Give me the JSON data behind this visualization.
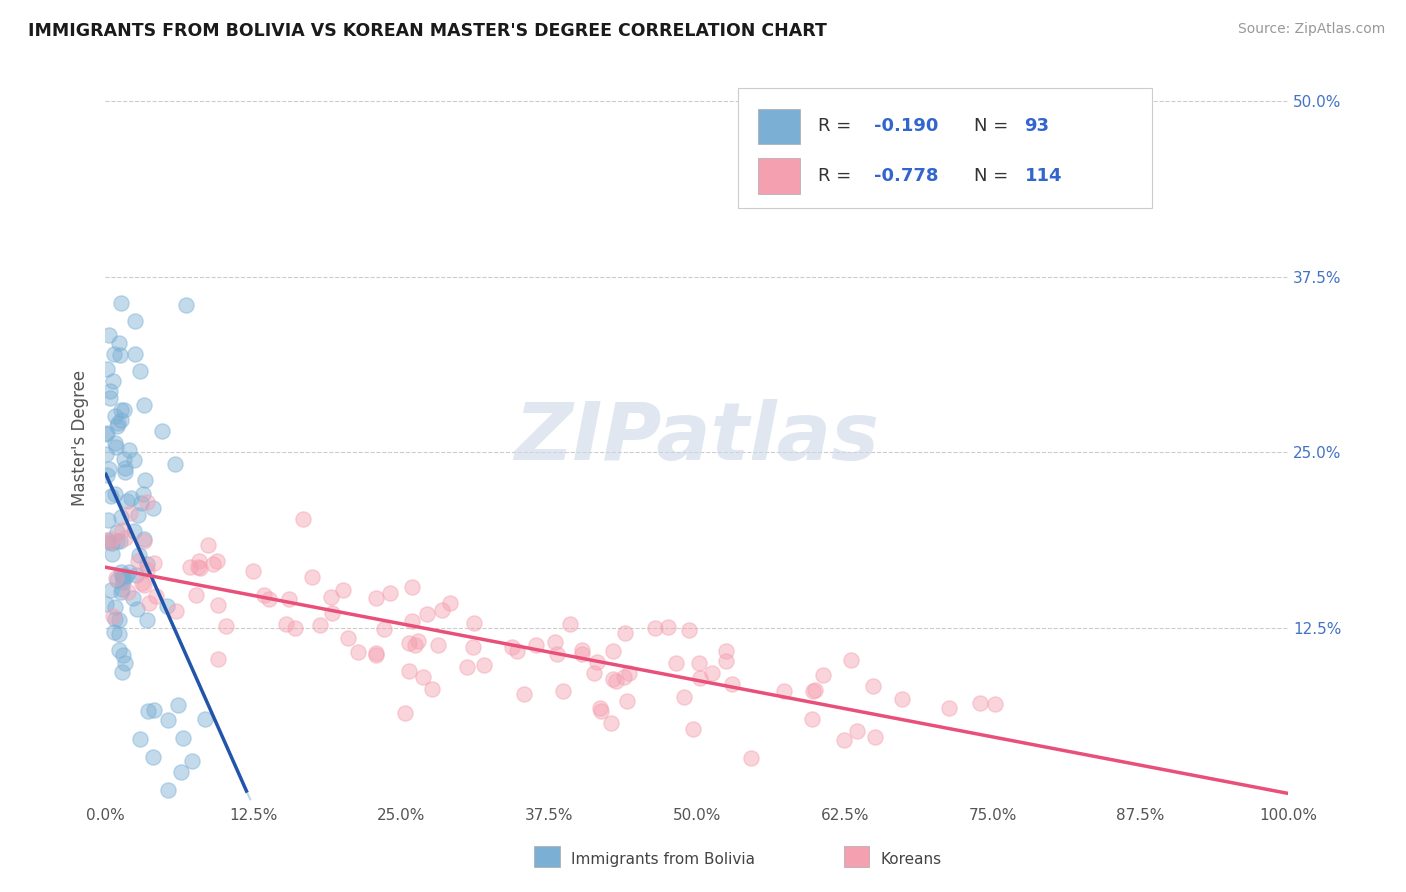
{
  "title": "IMMIGRANTS FROM BOLIVIA VS KOREAN MASTER'S DEGREE CORRELATION CHART",
  "source_text": "Source: ZipAtlas.com",
  "ylabel": "Master's Degree",
  "legend_labels": [
    "Immigrants from Bolivia",
    "Koreans"
  ],
  "r1": -0.19,
  "n1": 93,
  "r2": -0.778,
  "n2": 114,
  "xlim": [
    0.0,
    1.0
  ],
  "ylim": [
    0.0,
    0.52
  ],
  "xtick_labels": [
    "0.0%",
    "12.5%",
    "25.0%",
    "37.5%",
    "50.0%",
    "62.5%",
    "75.0%",
    "87.5%",
    "100.0%"
  ],
  "xtick_vals": [
    0.0,
    0.125,
    0.25,
    0.375,
    0.5,
    0.625,
    0.75,
    0.875,
    1.0
  ],
  "ytick_vals": [
    0.125,
    0.25,
    0.375,
    0.5
  ],
  "right_ytick_labels": [
    "12.5%",
    "25.0%",
    "37.5%",
    "50.0%"
  ],
  "right_ytick_vals": [
    0.125,
    0.25,
    0.375,
    0.5
  ],
  "watermark": "ZIPatlas",
  "color_bolivia": "#7bafd4",
  "color_korea": "#f4a0b0",
  "line_color_bolivia": "#2255aa",
  "line_color_korea": "#e8507a",
  "background_color": "#ffffff"
}
